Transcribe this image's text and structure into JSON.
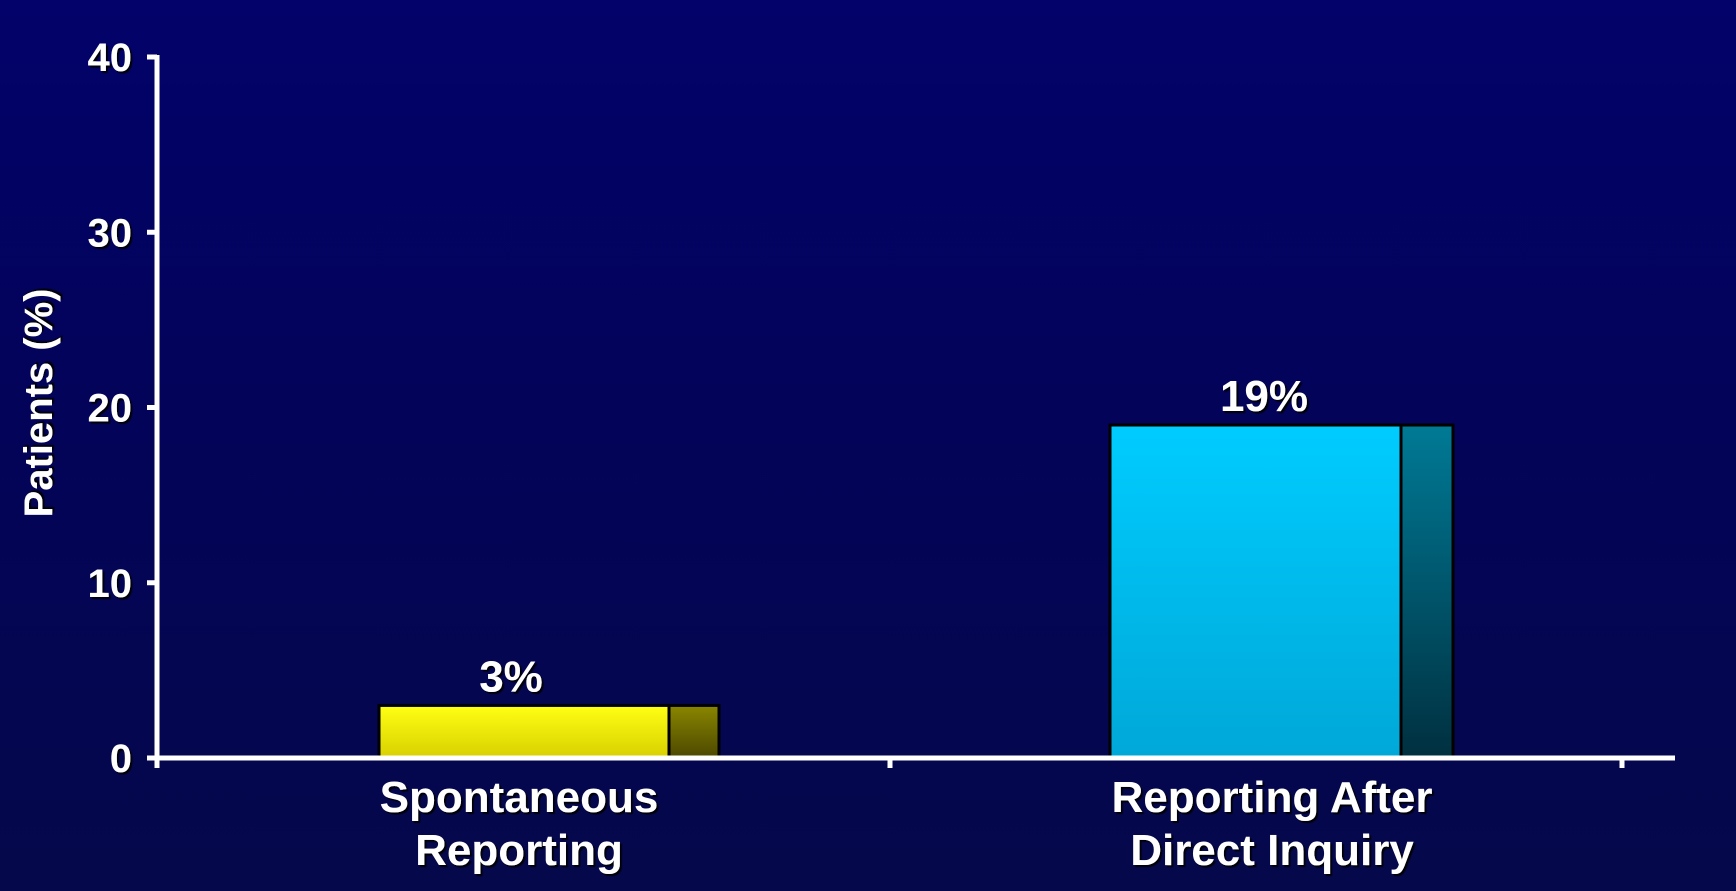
{
  "chart_data": {
    "type": "bar",
    "ylabel": "Patients (%)",
    "ylim": [
      0,
      40
    ],
    "yticks": [
      "0",
      "10",
      "20",
      "30",
      "40"
    ],
    "categories": [
      [
        "Spontaneous",
        "Reporting"
      ],
      [
        "Reporting After",
        "Direct Inquiry"
      ]
    ],
    "values": [
      3,
      19
    ],
    "value_labels": [
      "3%",
      "19%"
    ],
    "colors": [
      "#ffff10",
      "#00ccff"
    ],
    "grid": false,
    "style": "3d-bars"
  }
}
